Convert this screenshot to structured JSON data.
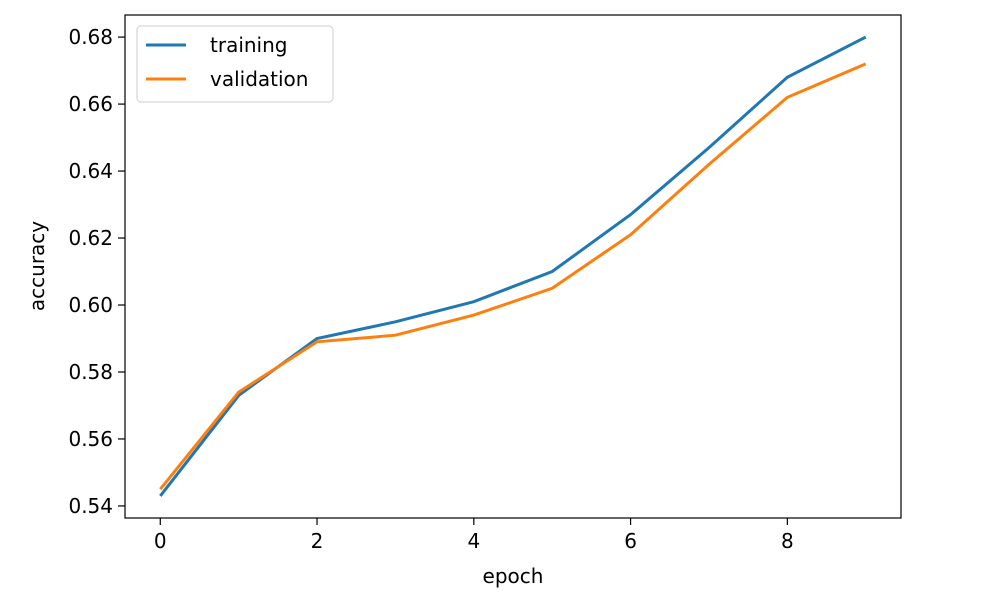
{
  "chart_data": {
    "type": "line",
    "title": "",
    "xlabel": "epoch",
    "ylabel": "accuracy",
    "x": [
      0,
      1,
      2,
      3,
      4,
      5,
      6,
      7,
      8,
      9
    ],
    "xlim": [
      -0.45,
      9.45
    ],
    "ylim": [
      0.5364,
      0.6866
    ],
    "xticks": [
      0,
      2,
      4,
      6,
      8
    ],
    "yticks": [
      0.54,
      0.56,
      0.58,
      0.6,
      0.62,
      0.64,
      0.66,
      0.68
    ],
    "ytick_labels": [
      "0.54",
      "0.56",
      "0.58",
      "0.60",
      "0.62",
      "0.64",
      "0.66",
      "0.68"
    ],
    "grid": false,
    "legend_position": "top-left",
    "series": [
      {
        "name": "training",
        "color": "#1f77b4",
        "values": [
          0.543,
          0.573,
          0.59,
          0.595,
          0.601,
          0.61,
          0.627,
          0.647,
          0.668,
          0.68
        ]
      },
      {
        "name": "validation",
        "color": "#ff7f0e",
        "values": [
          0.545,
          0.574,
          0.589,
          0.591,
          0.597,
          0.605,
          0.621,
          0.642,
          0.662,
          0.672
        ]
      }
    ]
  }
}
